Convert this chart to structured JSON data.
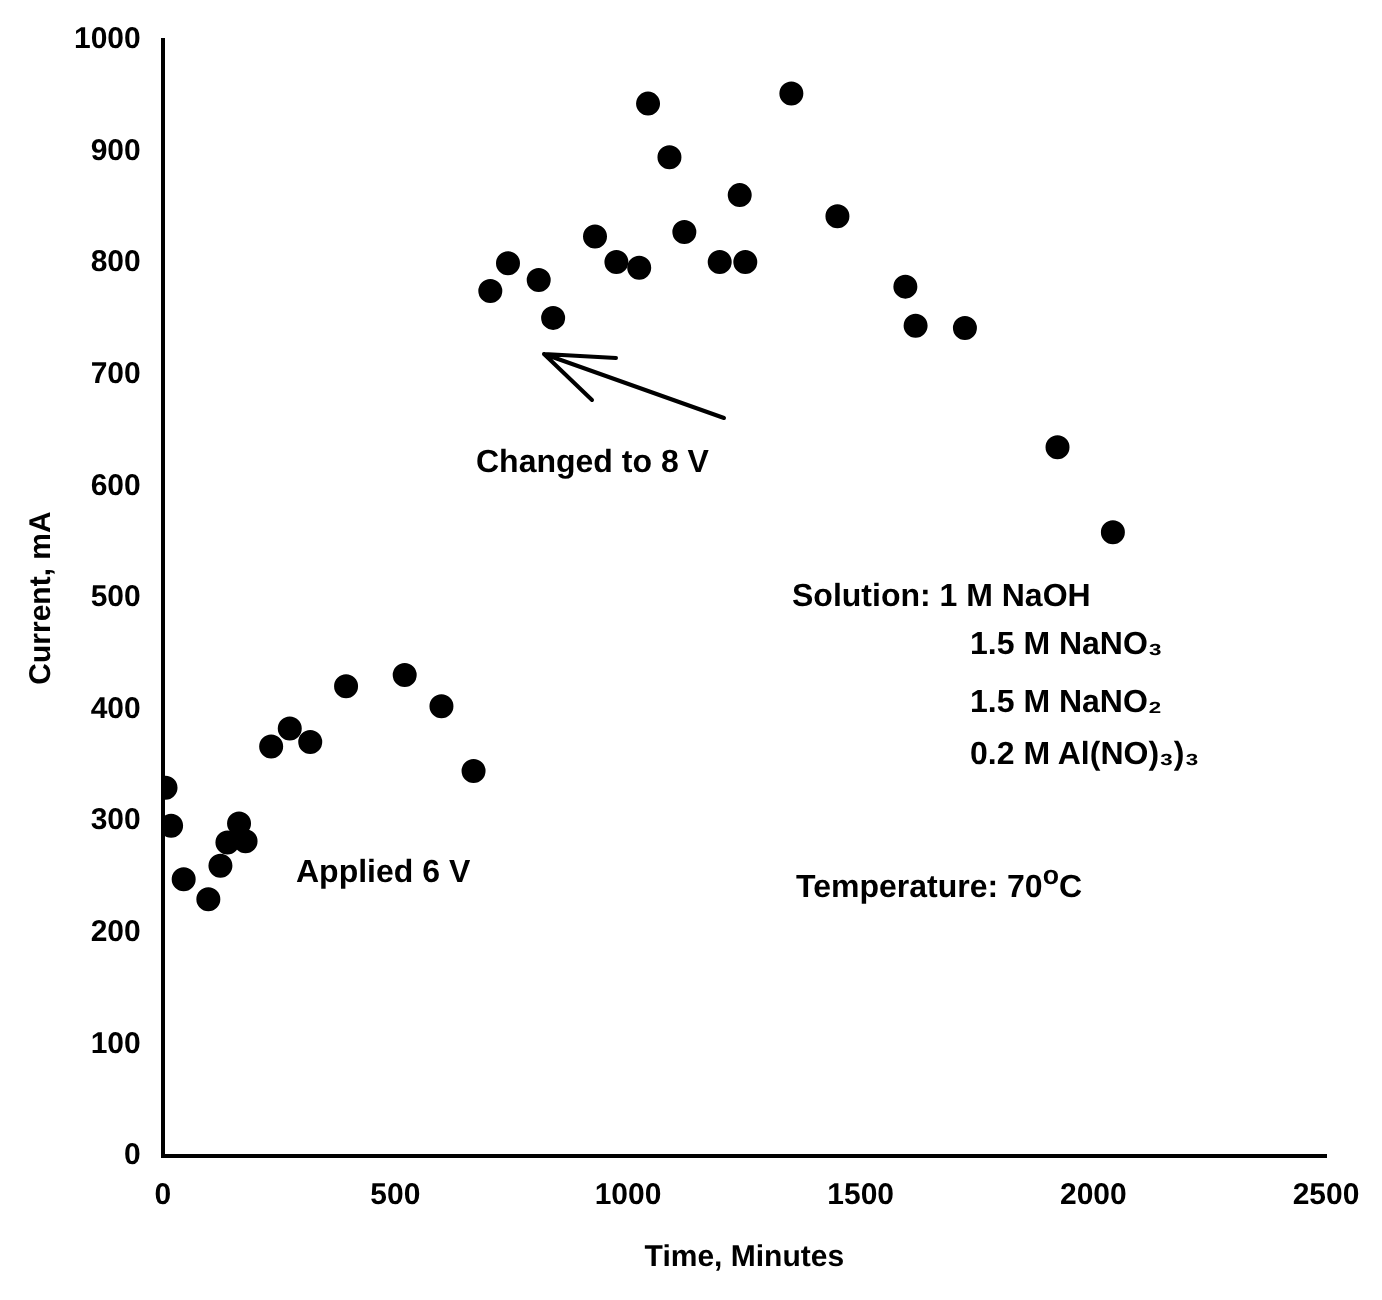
{
  "chart_data": {
    "type": "scatter",
    "xlabel": "Time, Minutes",
    "ylabel": "Current, mA",
    "xlim": [
      0,
      2500
    ],
    "xticks": [
      0,
      500,
      1000,
      1500,
      2000,
      2500
    ],
    "ylim": [
      0,
      1000
    ],
    "yticks": [
      0,
      100,
      200,
      300,
      400,
      500,
      600,
      700,
      800,
      900,
      1000
    ],
    "grid": false,
    "legend": false,
    "marker": "circle",
    "series": [
      {
        "color": "#000000",
        "x": [
          6,
          18,
          45,
          98,
          124,
          139,
          164,
          178,
          233,
          273,
          317,
          394,
          520,
          599,
          668,
          704,
          742,
          808,
          839,
          929,
          975,
          1024,
          1043,
          1089,
          1121,
          1197,
          1240,
          1252,
          1351,
          1450,
          1596,
          1618,
          1724,
          1923,
          2042
        ],
        "values": [
          330,
          296,
          248,
          230,
          260,
          281,
          298,
          282,
          367,
          383,
          371,
          421,
          431,
          403,
          345,
          775,
          800,
          785,
          751,
          824,
          801,
          796,
          943,
          895,
          828,
          801,
          861,
          801,
          952,
          842,
          779,
          744,
          742,
          635,
          559
        ]
      }
    ],
    "annotations": [
      "Applied 6 V",
      "Changed to 8 V",
      "Solution: 1 M NaOH",
      "1.5 M NaNO₃",
      "1.5 M NaNO₂",
      "0.2 M Al(NO)₃)₃",
      "Temperature: 70$^{o}$C"
    ]
  }
}
